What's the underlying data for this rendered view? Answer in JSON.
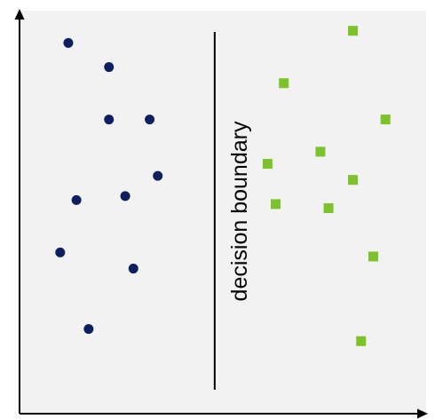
{
  "colors": {
    "background_panel": "#f2f2f2",
    "axis": "#000000",
    "boundary_line": "#000000",
    "class_a": "#0d1f5e",
    "class_b": "#7cc22b"
  },
  "boundary": {
    "label": "decision boundary"
  },
  "chart_data": {
    "type": "scatter",
    "title": "",
    "xlabel": "",
    "ylabel": "",
    "xlim": [
      0,
      100
    ],
    "ylim": [
      0,
      100
    ],
    "grid": false,
    "boundary_x": 48,
    "series": [
      {
        "marker": "circle",
        "x": [
          12,
          22,
          32,
          22,
          34,
          14,
          26,
          10,
          28,
          17
        ],
        "y": [
          92,
          86,
          73,
          73,
          59,
          53,
          54,
          40,
          36,
          21
        ]
      },
      {
        "marker": "square",
        "x": [
          82,
          65,
          90,
          74,
          61,
          82,
          63,
          76,
          87,
          84
        ],
        "y": [
          95,
          82,
          73,
          65,
          62,
          58,
          52,
          51,
          39,
          18
        ]
      }
    ]
  }
}
